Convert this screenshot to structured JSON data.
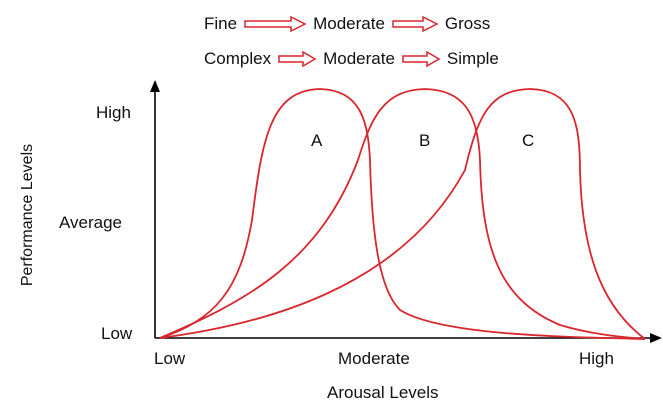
{
  "top_row_1": {
    "items": [
      "Fine",
      "Moderate",
      "Gross"
    ]
  },
  "top_row_2": {
    "items": [
      "Complex",
      "Moderate",
      "Simple"
    ]
  },
  "y_axis": {
    "label": "Performance Levels",
    "ticks": [
      "High",
      "Average",
      "Low"
    ]
  },
  "x_axis": {
    "label": "Arousal Levels",
    "ticks": [
      "Low",
      "Moderate",
      "High"
    ]
  },
  "curves": [
    {
      "label": "A"
    },
    {
      "label": "B"
    },
    {
      "label": "C"
    }
  ],
  "colors": {
    "curve": "#d9272e",
    "axis": "#000000"
  }
}
